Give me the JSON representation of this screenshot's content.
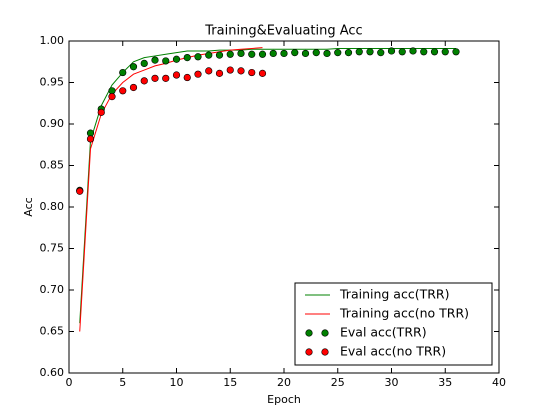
{
  "chart_data": {
    "type": "line",
    "title": "Training&Evaluating Acc",
    "x_label": "Epoch",
    "y_label": "Acc",
    "xlim": [
      0,
      40
    ],
    "xticks": [
      0,
      5,
      10,
      15,
      20,
      25,
      30,
      35,
      40
    ],
    "ylim": [
      0.6,
      1.0
    ],
    "yticks": [
      {
        "value": 0.6,
        "label": "0.60"
      },
      {
        "value": 0.65,
        "label": "0.65"
      },
      {
        "value": 0.7,
        "label": "0.70"
      },
      {
        "value": 0.75,
        "label": "0.75"
      },
      {
        "value": 0.8,
        "label": "0.80"
      },
      {
        "value": 0.85,
        "label": "0.85"
      },
      {
        "value": 0.9,
        "label": "0.90"
      },
      {
        "value": 0.95,
        "label": "0.95"
      },
      {
        "value": 1.0,
        "label": "1.00"
      }
    ],
    "legend": "lower right",
    "series": [
      {
        "name": "Training acc(TRR)",
        "kind": "line",
        "color": "#008000",
        "x": [
          1,
          2,
          3,
          4,
          5,
          6,
          7,
          8,
          9,
          10,
          11,
          12,
          13,
          14,
          15,
          16,
          17,
          18,
          19,
          20,
          21,
          22,
          23,
          24,
          25,
          26,
          27,
          28,
          29,
          30,
          31,
          32,
          33,
          34,
          35,
          36
        ],
        "values": [
          0.66,
          0.88,
          0.922,
          0.947,
          0.962,
          0.975,
          0.98,
          0.982,
          0.984,
          0.986,
          0.988,
          0.988,
          0.988,
          0.989,
          0.989,
          0.989,
          0.99,
          0.99,
          0.99,
          0.99,
          0.99,
          0.99,
          0.99,
          0.99,
          0.991,
          0.991,
          0.991,
          0.991,
          0.991,
          0.991,
          0.991,
          0.991,
          0.991,
          0.991,
          0.991,
          0.991
        ]
      },
      {
        "name": "Training acc(no TRR)",
        "kind": "line",
        "color": "#ff0000",
        "x": [
          1,
          2,
          3,
          4,
          5,
          6,
          7,
          8,
          9,
          10,
          11,
          12,
          13,
          14,
          15,
          16,
          17,
          18
        ],
        "values": [
          0.65,
          0.87,
          0.912,
          0.936,
          0.95,
          0.96,
          0.965,
          0.97,
          0.973,
          0.977,
          0.98,
          0.983,
          0.985,
          0.987,
          0.989,
          0.99,
          0.991,
          0.992
        ]
      },
      {
        "name": "Eval acc(TRR)",
        "kind": "scatter",
        "color": "#008000",
        "x": [
          1,
          2,
          3,
          4,
          5,
          6,
          7,
          8,
          9,
          10,
          11,
          12,
          13,
          14,
          15,
          16,
          17,
          18,
          19,
          20,
          21,
          22,
          23,
          24,
          25,
          26,
          27,
          28,
          29,
          30,
          31,
          32,
          33,
          34,
          35,
          36
        ],
        "values": [
          0.82,
          0.889,
          0.918,
          0.94,
          0.962,
          0.969,
          0.973,
          0.977,
          0.976,
          0.978,
          0.98,
          0.981,
          0.983,
          0.983,
          0.984,
          0.985,
          0.984,
          0.984,
          0.985,
          0.985,
          0.986,
          0.985,
          0.986,
          0.985,
          0.986,
          0.986,
          0.987,
          0.987,
          0.986,
          0.988,
          0.987,
          0.988,
          0.987,
          0.987,
          0.987,
          0.987
        ]
      },
      {
        "name": "Eval acc(no TRR)",
        "kind": "scatter",
        "color": "#ff0000",
        "x": [
          1,
          2,
          3,
          4,
          5,
          6,
          7,
          8,
          9,
          10,
          11,
          12,
          13,
          14,
          15,
          16,
          17,
          18
        ],
        "values": [
          0.819,
          0.882,
          0.914,
          0.933,
          0.94,
          0.944,
          0.952,
          0.955,
          0.955,
          0.959,
          0.956,
          0.96,
          0.964,
          0.961,
          0.965,
          0.964,
          0.962,
          0.961
        ]
      }
    ]
  }
}
